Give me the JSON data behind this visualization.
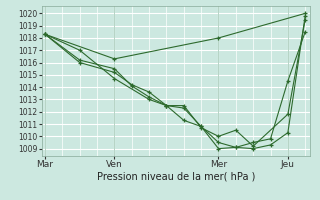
{
  "background_color": "#cce8e0",
  "plot_bg_color": "#cce8e0",
  "grid_color": "#ffffff",
  "line_color": "#2d6a2d",
  "marker_color": "#2d6a2d",
  "xlabel_text": "Pression niveau de la mer( hPa )",
  "yticks": [
    1009,
    1010,
    1011,
    1012,
    1013,
    1014,
    1015,
    1016,
    1017,
    1018,
    1019,
    1020
  ],
  "ylim": [
    1008.4,
    1020.6
  ],
  "xtick_labels": [
    "Mar",
    "Ven",
    "Mer",
    "Jeu"
  ],
  "xtick_positions": [
    0,
    4,
    10,
    14
  ],
  "xlim": [
    -0.2,
    15.3
  ],
  "vline_positions": [
    0,
    4,
    10,
    14
  ],
  "series": [
    {
      "x": [
        0,
        2,
        4,
        6,
        7,
        8,
        9,
        10,
        11,
        12,
        14,
        15
      ],
      "y": [
        1018.3,
        1017.0,
        1014.7,
        1013.0,
        1012.5,
        1012.5,
        1010.7,
        1010.0,
        1010.5,
        1009.2,
        1011.8,
        1019.5
      ]
    },
    {
      "x": [
        0,
        2,
        4,
        5,
        6,
        7,
        8,
        9,
        10,
        11,
        12,
        13,
        14,
        15
      ],
      "y": [
        1018.3,
        1016.0,
        1015.2,
        1014.2,
        1013.6,
        1012.5,
        1012.3,
        1010.8,
        1009.0,
        1009.1,
        1009.0,
        1009.3,
        1010.3,
        1019.8
      ]
    },
    {
      "x": [
        0,
        2,
        4,
        5,
        6,
        7,
        8,
        9,
        10,
        11,
        12,
        13,
        14,
        15
      ],
      "y": [
        1018.3,
        1016.2,
        1015.5,
        1014.1,
        1013.2,
        1012.5,
        1011.3,
        1010.8,
        1009.5,
        1009.1,
        1009.5,
        1009.8,
        1014.5,
        1018.5
      ]
    },
    {
      "x": [
        0,
        4,
        10,
        15
      ],
      "y": [
        1018.3,
        1016.3,
        1018.0,
        1020.0
      ]
    }
  ],
  "ytick_fontsize": 5.5,
  "xtick_fontsize": 6.5,
  "xlabel_fontsize": 7.0
}
